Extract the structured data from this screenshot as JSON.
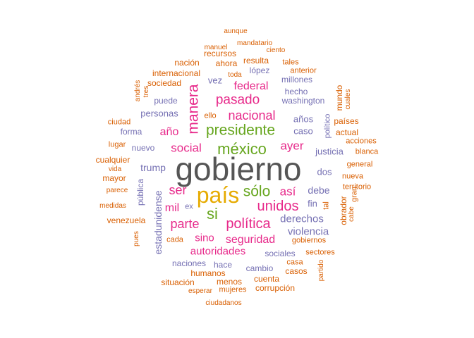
{
  "palette": {
    "dark": "#555555",
    "gold": "#e6ab02",
    "magenta": "#e7298a",
    "green": "#66a61e",
    "purple": "#7570b3",
    "orange": "#d95f02"
  },
  "words": [
    {
      "text": "gobierno",
      "color": "dark"
    },
    {
      "text": "país",
      "color": "gold"
    },
    {
      "text": "presidente",
      "color": "green"
    },
    {
      "text": "méxico",
      "color": "green"
    },
    {
      "text": "si",
      "color": "green"
    },
    {
      "text": "sólo",
      "color": "green"
    },
    {
      "text": "manera",
      "color": "magenta"
    },
    {
      "text": "pasado",
      "color": "magenta"
    },
    {
      "text": "nacional",
      "color": "magenta"
    },
    {
      "text": "unidos",
      "color": "magenta"
    },
    {
      "text": "política",
      "color": "magenta"
    },
    {
      "text": "social",
      "color": "magenta"
    },
    {
      "text": "así",
      "color": "magenta"
    },
    {
      "text": "parte",
      "color": "magenta"
    },
    {
      "text": "ser",
      "color": "magenta"
    },
    {
      "text": "mil",
      "color": "magenta"
    },
    {
      "text": "año",
      "color": "magenta"
    },
    {
      "text": "ayer",
      "color": "magenta"
    },
    {
      "text": "federal",
      "color": "magenta"
    },
    {
      "text": "sino",
      "color": "magenta"
    },
    {
      "text": "seguridad",
      "color": "magenta"
    },
    {
      "text": "autoridades",
      "color": "magenta"
    },
    {
      "text": "derechos",
      "color": "purple"
    },
    {
      "text": "violencia",
      "color": "purple"
    },
    {
      "text": "estadunidense",
      "color": "purple"
    },
    {
      "text": "trump",
      "color": "purple"
    },
    {
      "text": "debe",
      "color": "purple"
    },
    {
      "text": "justicia",
      "color": "purple"
    },
    {
      "text": "años",
      "color": "purple"
    },
    {
      "text": "caso",
      "color": "purple"
    },
    {
      "text": "fin",
      "color": "purple"
    },
    {
      "text": "dos",
      "color": "purple"
    },
    {
      "text": "personas",
      "color": "purple"
    },
    {
      "text": "nuevo",
      "color": "purple"
    },
    {
      "text": "vez",
      "color": "purple"
    },
    {
      "text": "lópez",
      "color": "purple"
    },
    {
      "text": "hecho",
      "color": "purple"
    },
    {
      "text": "millones",
      "color": "purple"
    },
    {
      "text": "washington",
      "color": "purple"
    },
    {
      "text": "puede",
      "color": "purple"
    },
    {
      "text": "pública",
      "color": "purple"
    },
    {
      "text": "ex",
      "color": "purple"
    },
    {
      "text": "político",
      "color": "purple"
    },
    {
      "text": "sociales",
      "color": "purple"
    },
    {
      "text": "naciones",
      "color": "purple"
    },
    {
      "text": "hace",
      "color": "purple"
    },
    {
      "text": "cambio",
      "color": "purple"
    },
    {
      "text": "forma",
      "color": "purple"
    },
    {
      "text": "aunque",
      "color": "orange"
    },
    {
      "text": "mandatario",
      "color": "orange"
    },
    {
      "text": "manuel",
      "color": "orange"
    },
    {
      "text": "ciento",
      "color": "orange"
    },
    {
      "text": "recursos",
      "color": "orange"
    },
    {
      "text": "nación",
      "color": "orange"
    },
    {
      "text": "ahora",
      "color": "orange"
    },
    {
      "text": "resulta",
      "color": "orange"
    },
    {
      "text": "tales",
      "color": "orange"
    },
    {
      "text": "internacional",
      "color": "orange"
    },
    {
      "text": "toda",
      "color": "orange"
    },
    {
      "text": "anterior",
      "color": "orange"
    },
    {
      "text": "andrés",
      "color": "orange"
    },
    {
      "text": "tres",
      "color": "orange"
    },
    {
      "text": "sociedad",
      "color": "orange"
    },
    {
      "text": "mundo",
      "color": "orange"
    },
    {
      "text": "cuales",
      "color": "orange"
    },
    {
      "text": "ello",
      "color": "orange"
    },
    {
      "text": "países",
      "color": "orange"
    },
    {
      "text": "ciudad",
      "color": "orange"
    },
    {
      "text": "actual",
      "color": "orange"
    },
    {
      "text": "acciones",
      "color": "orange"
    },
    {
      "text": "lugar",
      "color": "orange"
    },
    {
      "text": "blanca",
      "color": "orange"
    },
    {
      "text": "cualquier",
      "color": "orange"
    },
    {
      "text": "general",
      "color": "orange"
    },
    {
      "text": "vida",
      "color": "orange"
    },
    {
      "text": "mayor",
      "color": "orange"
    },
    {
      "text": "nueva",
      "color": "orange"
    },
    {
      "text": "territorio",
      "color": "orange"
    },
    {
      "text": "parece",
      "color": "orange"
    },
    {
      "text": "gran",
      "color": "orange"
    },
    {
      "text": "medidas",
      "color": "orange"
    },
    {
      "text": "tal",
      "color": "orange"
    },
    {
      "text": "obrador",
      "color": "orange"
    },
    {
      "text": "cabe",
      "color": "orange"
    },
    {
      "text": "venezuela",
      "color": "orange"
    },
    {
      "text": "pues",
      "color": "orange"
    },
    {
      "text": "cada",
      "color": "orange"
    },
    {
      "text": "gobiernos",
      "color": "orange"
    },
    {
      "text": "sectores",
      "color": "orange"
    },
    {
      "text": "casa",
      "color": "orange"
    },
    {
      "text": "humanos",
      "color": "orange"
    },
    {
      "text": "casos",
      "color": "orange"
    },
    {
      "text": "partido",
      "color": "orange"
    },
    {
      "text": "situación",
      "color": "orange"
    },
    {
      "text": "menos",
      "color": "orange"
    },
    {
      "text": "cuenta",
      "color": "orange"
    },
    {
      "text": "esperar",
      "color": "orange"
    },
    {
      "text": "mujeres",
      "color": "orange"
    },
    {
      "text": "corrupción",
      "color": "orange"
    },
    {
      "text": "ciudadanos",
      "color": "orange"
    }
  ]
}
